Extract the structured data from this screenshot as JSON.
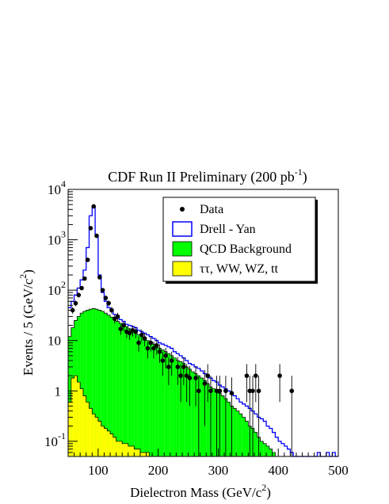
{
  "chart_data": {
    "type": "histogram",
    "title": "CDF Run II Preliminary (200 pb",
    "title_sup": "-1",
    "title_end": ")",
    "xlabel": "Dielectron Mass (GeV/c",
    "xlabel_sup": "2",
    "xlabel_end": ")",
    "ylabel": "Events / 5 (GeV/c",
    "ylabel_sup": "2",
    "ylabel_end": ")",
    "xlim": [
      50,
      500
    ],
    "ylim": [
      0.05,
      10000
    ],
    "yscale": "log",
    "bin_width": 5,
    "x_ticks": [
      100,
      200,
      300,
      400,
      500
    ],
    "y_ticks": [
      {
        "value": 0.1,
        "base": "10",
        "exp": "-1"
      },
      {
        "value": 1,
        "base": "1",
        "exp": ""
      },
      {
        "value": 10,
        "base": "10",
        "exp": ""
      },
      {
        "value": 100,
        "base": "10",
        "exp": "2"
      },
      {
        "value": 1000,
        "base": "10",
        "exp": "3"
      },
      {
        "value": 10000,
        "base": "10",
        "exp": "4"
      }
    ],
    "legend": {
      "position": "top-right",
      "entries": [
        {
          "label": "Data",
          "style": "marker",
          "color": "#000000"
        },
        {
          "label": "Drell - Yan",
          "style": "outline",
          "color": "#0000ff"
        },
        {
          "label": "QCD Background",
          "style": "fill",
          "color": "#00ff00"
        },
        {
          "label": "ττ, WW, WZ, tt",
          "style": "fill",
          "color": "#ffff00"
        }
      ]
    },
    "series": [
      {
        "name": "Drell - Yan",
        "kind": "outline",
        "color": "#0000ff",
        "bin_starts": [
          50,
          55,
          60,
          65,
          70,
          75,
          80,
          85,
          90,
          95,
          100,
          105,
          110,
          115,
          120,
          125,
          130,
          135,
          140,
          145,
          150,
          155,
          160,
          165,
          170,
          175,
          180,
          185,
          190,
          195,
          200,
          205,
          210,
          215,
          220,
          225,
          230,
          235,
          240,
          245,
          250,
          255,
          260,
          265,
          270,
          275,
          280,
          285,
          290,
          295,
          300,
          305,
          310,
          315,
          320,
          325,
          330,
          335,
          340,
          345,
          350,
          355,
          360,
          365,
          370,
          375,
          380,
          385,
          390,
          395,
          400,
          405,
          410,
          415,
          420,
          425,
          430,
          435,
          440,
          445,
          450,
          455,
          460,
          465,
          470,
          475,
          480,
          485,
          490,
          495
        ],
        "values": [
          45,
          60,
          80,
          110,
          160,
          250,
          700,
          3000,
          4500,
          1200,
          200,
          90,
          60,
          45,
          38,
          33,
          28,
          26,
          24,
          21,
          20,
          19,
          18,
          16,
          15,
          14,
          13,
          12,
          11,
          10,
          9,
          8.5,
          8,
          7.5,
          7,
          6,
          5.5,
          5,
          4.5,
          4,
          3.5,
          3.3,
          3,
          2.8,
          2.5,
          2.2,
          2,
          1.8,
          1.6,
          1.5,
          1.3,
          1.2,
          1.1,
          1.0,
          0.9,
          0.8,
          0.7,
          0.6,
          0.55,
          0.5,
          0.45,
          0.4,
          0.35,
          0.3,
          0.28,
          0.25,
          0.2,
          0.18,
          0.15,
          0.12,
          0.1,
          0.09,
          0.08,
          0.07,
          0.06,
          0.05,
          0.05,
          0.05,
          0.05,
          0.05,
          0.05,
          0.05,
          0.05,
          0.06,
          0.05,
          0.05,
          0.06,
          0.05,
          0.06,
          0.05
        ]
      },
      {
        "name": "QCD Background",
        "kind": "fill",
        "color": "#00ff00",
        "bin_starts": [
          50,
          55,
          60,
          65,
          70,
          75,
          80,
          85,
          90,
          95,
          100,
          105,
          110,
          115,
          120,
          125,
          130,
          135,
          140,
          145,
          150,
          155,
          160,
          165,
          170,
          175,
          180,
          185,
          190,
          195,
          200,
          205,
          210,
          215,
          220,
          225,
          230,
          235,
          240,
          245,
          250,
          255,
          260,
          265,
          270,
          275,
          280,
          285,
          290,
          295,
          300,
          305,
          310,
          315,
          320,
          325,
          330,
          335,
          340,
          345,
          350,
          355,
          360,
          365,
          370,
          375,
          380,
          385,
          390,
          395,
          400,
          405,
          410,
          415,
          420,
          425,
          430
        ],
        "values": [
          12,
          18,
          25,
          30,
          35,
          38,
          40,
          42,
          43,
          42,
          40,
          38,
          35,
          32,
          29,
          26,
          24,
          22,
          21,
          19,
          17,
          16,
          14,
          13,
          12,
          11,
          10,
          9.5,
          8.5,
          8,
          7,
          6.5,
          6,
          5.5,
          5,
          4.5,
          4,
          3.8,
          3.5,
          3,
          2.7,
          2.4,
          2.2,
          2,
          1.8,
          1.6,
          1.4,
          1.2,
          1.1,
          1,
          0.9,
          0.8,
          0.7,
          0.6,
          0.5,
          0.45,
          0.4,
          0.35,
          0.3,
          0.25,
          0.2,
          0.18,
          0.15,
          0.12,
          0.1,
          0.09,
          0.08,
          0.07,
          0.06,
          0.05,
          0.05,
          0.05,
          0.05,
          0.05,
          0.05,
          0.05,
          0.05
        ]
      },
      {
        "name": "ττ, WW, WZ, tt",
        "kind": "fill",
        "color": "#ffff00",
        "bin_starts": [
          50,
          55,
          60,
          65,
          70,
          75,
          80,
          85,
          90,
          95,
          100,
          105,
          110,
          115,
          120,
          125,
          130,
          135,
          140,
          145,
          150,
          155,
          160,
          165,
          170,
          175,
          180,
          185,
          190,
          195
        ],
        "values": [
          0.6,
          1.8,
          2.0,
          1.5,
          1.1,
          0.8,
          0.6,
          0.45,
          0.35,
          0.3,
          0.25,
          0.2,
          0.18,
          0.16,
          0.14,
          0.12,
          0.1,
          0.1,
          0.09,
          0.09,
          0.08,
          0.08,
          0.07,
          0.07,
          0.06,
          0.06,
          0.06,
          0.05,
          0.05,
          0.05
        ]
      }
    ],
    "data_points": {
      "name": "Data",
      "x": [
        57.5,
        62.5,
        67.5,
        72.5,
        77.5,
        82.5,
        87.5,
        92.5,
        97.5,
        102.5,
        107.5,
        112.5,
        117.5,
        122.5,
        127.5,
        132.5,
        137.5,
        142.5,
        147.5,
        152.5,
        157.5,
        162.5,
        167.5,
        172.5,
        177.5,
        182.5,
        187.5,
        192.5,
        197.5,
        202.5,
        207.5,
        212.5,
        217.5,
        222.5,
        232.5,
        237.5,
        242.5,
        247.5,
        252.5,
        262.5,
        267.5,
        277.5,
        282.5,
        287.5,
        297.5,
        302.5,
        312.5,
        322.5,
        347.5,
        352.5,
        357.5,
        362.5,
        367.5,
        402.5,
        422.5
      ],
      "y": [
        40,
        55,
        80,
        110,
        170,
        400,
        1700,
        4600,
        1200,
        180,
        100,
        70,
        55,
        40,
        27,
        30,
        17,
        20,
        15,
        14,
        16,
        15,
        9,
        13,
        11,
        7,
        9,
        7,
        8,
        6,
        4,
        5,
        3,
        4,
        3,
        2,
        3,
        2,
        1.8,
        1.8,
        1,
        1.4,
        2,
        1,
        1,
        1,
        1,
        0.9,
        2,
        1,
        1,
        2,
        1,
        2,
        1
      ],
      "err": [
        6,
        7,
        9,
        10,
        13,
        20,
        41,
        68,
        35,
        13,
        10,
        8.4,
        7.4,
        6.3,
        5.2,
        5.5,
        4.1,
        4.5,
        3.9,
        3.7,
        4,
        3.9,
        3,
        3.6,
        3.3,
        2.6,
        3,
        2.6,
        2.8,
        2.4,
        2,
        2.2,
        1.7,
        2,
        1.7,
        1.4,
        1.7,
        1.4,
        1.3,
        1.3,
        1,
        1.2,
        1.4,
        1,
        1,
        1,
        1,
        0.95,
        1.4,
        1,
        1,
        1.4,
        1,
        1.4,
        1
      ]
    }
  }
}
